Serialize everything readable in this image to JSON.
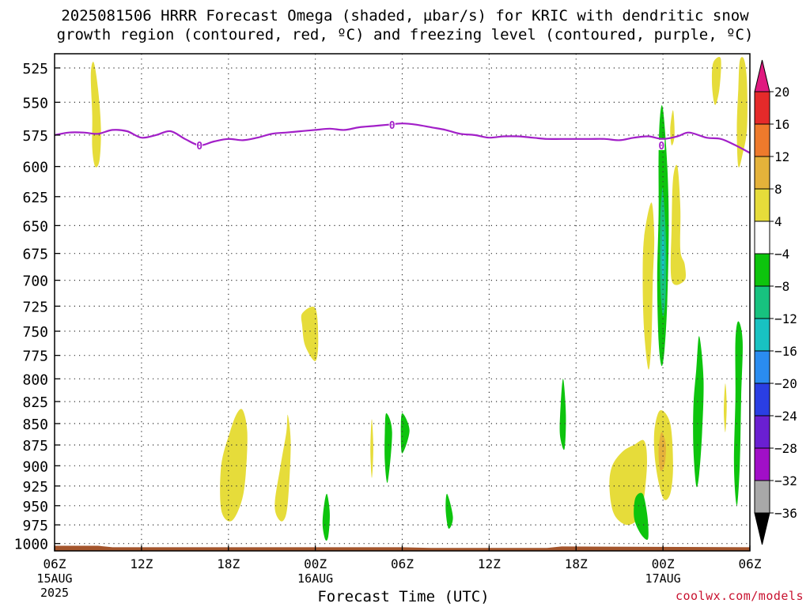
{
  "title": {
    "line1": "2025081506 HRRR Forecast Omega (shaded, µbar/s) for KRIC with dendritic snow",
    "line2": "growth region (contoured, red, ºC) and freezing level (contoured, purple, ºC)"
  },
  "footer": {
    "credit": "coolwx.com/models"
  },
  "chart_data": {
    "type": "heatmap",
    "title": "2025081506 HRRR Forecast Omega (shaded, µbar/s) for KRIC with dendritic snow growth region (contoured, red, ºC) and freezing level (contoured, purple, ºC)",
    "xlabel": "Forecast Time (UTC)",
    "ylabel": "",
    "x_unit": "hours since 2025-08-15 06Z",
    "xlim": [
      0,
      48
    ],
    "ylim_pressure_hPa": [
      1010,
      515
    ],
    "y_ticks": [
      525,
      550,
      575,
      600,
      625,
      650,
      675,
      700,
      725,
      750,
      775,
      800,
      825,
      850,
      875,
      900,
      925,
      950,
      975,
      1000
    ],
    "x_ticks": [
      {
        "h": 0,
        "label": "06Z",
        "sub1": "15AUG",
        "sub2": "2025"
      },
      {
        "h": 6,
        "label": "12Z",
        "sub1": "",
        "sub2": ""
      },
      {
        "h": 12,
        "label": "18Z",
        "sub1": "",
        "sub2": ""
      },
      {
        "h": 18,
        "label": "00Z",
        "sub1": "16AUG",
        "sub2": ""
      },
      {
        "h": 24,
        "label": "06Z",
        "sub1": "",
        "sub2": ""
      },
      {
        "h": 30,
        "label": "12Z",
        "sub1": "",
        "sub2": ""
      },
      {
        "h": 36,
        "label": "18Z",
        "sub1": "",
        "sub2": ""
      },
      {
        "h": 42,
        "label": "00Z",
        "sub1": "17AUG",
        "sub2": ""
      },
      {
        "h": 48,
        "label": "06Z",
        "sub1": "",
        "sub2": ""
      }
    ],
    "grid": true,
    "legend": {
      "position": "right",
      "labels": [
        "20",
        "16",
        "12",
        "8",
        "4",
        "−4",
        "−8",
        "−12",
        "−16",
        "−20",
        "−24",
        "−28",
        "−32",
        "−36"
      ],
      "bins": [
        {
          "color": "#e01a7f"
        },
        {
          "color": "#e52a2a"
        },
        {
          "color": "#ee7a2c"
        },
        {
          "color": "#e5b23a"
        },
        {
          "color": "#e6dc3a"
        },
        {
          "color": "#ffffff"
        },
        {
          "color": "#0dc40d"
        },
        {
          "color": "#17c27f"
        },
        {
          "color": "#18c2c2"
        },
        {
          "color": "#2a8cf0"
        },
        {
          "color": "#2a3ee3"
        },
        {
          "color": "#6a1fd1"
        },
        {
          "color": "#a10fc7"
        },
        {
          "color": "#a8a8a8"
        },
        {
          "color": "#000000"
        }
      ]
    },
    "freezing_level": {
      "color": "#a21fc8",
      "label": "0",
      "points": [
        [
          0,
          575
        ],
        [
          1,
          573
        ],
        [
          2,
          573
        ],
        [
          3,
          574
        ],
        [
          4,
          571
        ],
        [
          5,
          572
        ],
        [
          6,
          577
        ],
        [
          7,
          575
        ],
        [
          8,
          572
        ],
        [
          9,
          578
        ],
        [
          10,
          583
        ],
        [
          11,
          580
        ],
        [
          12,
          578
        ],
        [
          13,
          579
        ],
        [
          14,
          577
        ],
        [
          15,
          574
        ],
        [
          16,
          573
        ],
        [
          17,
          572
        ],
        [
          18,
          571
        ],
        [
          19,
          570
        ],
        [
          20,
          571
        ],
        [
          21,
          569
        ],
        [
          22,
          568
        ],
        [
          23,
          567
        ],
        [
          24,
          566
        ],
        [
          25,
          567
        ],
        [
          26,
          569
        ],
        [
          27,
          571
        ],
        [
          28,
          574
        ],
        [
          29,
          575
        ],
        [
          30,
          577
        ],
        [
          31,
          576
        ],
        [
          32,
          576
        ],
        [
          33,
          577
        ],
        [
          34,
          578
        ],
        [
          35,
          578
        ],
        [
          36,
          578
        ],
        [
          37,
          578
        ],
        [
          38,
          578
        ],
        [
          39,
          579
        ],
        [
          40,
          577
        ],
        [
          41,
          576
        ],
        [
          42,
          578
        ],
        [
          43,
          576
        ],
        [
          43.8,
          573
        ],
        [
          45,
          577
        ],
        [
          46,
          578
        ],
        [
          47,
          583
        ],
        [
          48,
          589
        ]
      ],
      "contour_labels": [
        [
          10.0,
          583
        ],
        [
          23.3,
          567
        ],
        [
          41.9,
          583
        ]
      ]
    },
    "surface": {
      "color": "#a4552c",
      "top_pressure": [
        [
          0,
          1003
        ],
        [
          3,
          1003
        ],
        [
          4,
          1005
        ],
        [
          24,
          1005
        ],
        [
          26,
          1006
        ],
        [
          34,
          1006
        ],
        [
          35,
          1004
        ],
        [
          48,
          1005
        ]
      ]
    },
    "omega_areas": [
      {
        "level": 4,
        "points": [
          [
            2.7,
            521
          ],
          [
            3.0,
            540
          ],
          [
            3.2,
            570
          ],
          [
            3.1,
            595
          ],
          [
            2.8,
            600
          ],
          [
            2.6,
            585
          ],
          [
            2.6,
            560
          ],
          [
            2.5,
            530
          ]
        ]
      },
      {
        "level": 4,
        "points": [
          [
            17.1,
            732
          ],
          [
            18.0,
            727
          ],
          [
            18.2,
            760
          ],
          [
            18.0,
            781
          ],
          [
            17.3,
            765
          ],
          [
            17.1,
            745
          ]
        ]
      },
      {
        "level": 4,
        "points": [
          [
            13.0,
            835
          ],
          [
            13.3,
            860
          ],
          [
            13.2,
            910
          ],
          [
            12.9,
            945
          ],
          [
            12.2,
            970
          ],
          [
            11.5,
            955
          ],
          [
            11.5,
            900
          ],
          [
            12.1,
            860
          ],
          [
            12.6,
            838
          ]
        ]
      },
      {
        "level": 4,
        "points": [
          [
            16.1,
            840
          ],
          [
            16.3,
            870
          ],
          [
            16.2,
            920
          ],
          [
            16.0,
            960
          ],
          [
            15.6,
            970
          ],
          [
            15.2,
            950
          ],
          [
            15.6,
            900
          ],
          [
            16.0,
            860
          ]
        ]
      },
      {
        "level": 4,
        "points": [
          [
            21.9,
            845
          ],
          [
            22.0,
            880
          ],
          [
            21.9,
            915
          ],
          [
            21.8,
            880
          ]
        ]
      },
      {
        "level": 4,
        "points": [
          [
            40.7,
            870
          ],
          [
            40.9,
            895
          ],
          [
            40.7,
            940
          ],
          [
            40.4,
            965
          ],
          [
            39.5,
            975
          ],
          [
            38.6,
            960
          ],
          [
            38.3,
            925
          ],
          [
            38.5,
            900
          ],
          [
            39.2,
            883
          ],
          [
            40.0,
            875
          ]
        ]
      },
      {
        "level": 4,
        "points": [
          [
            41.8,
            835
          ],
          [
            42.5,
            850
          ],
          [
            42.7,
            900
          ],
          [
            42.5,
            935
          ],
          [
            42.0,
            940
          ],
          [
            41.5,
            900
          ],
          [
            41.4,
            860
          ]
        ]
      },
      {
        "level": 8,
        "points": [
          [
            41.9,
            860
          ],
          [
            42.2,
            875
          ],
          [
            42.1,
            900
          ],
          [
            41.8,
            905
          ],
          [
            41.7,
            880
          ]
        ]
      },
      {
        "level": 4,
        "points": [
          [
            41.2,
            630
          ],
          [
            41.4,
            660
          ],
          [
            41.3,
            700
          ],
          [
            41.2,
            760
          ],
          [
            41.0,
            790
          ],
          [
            40.7,
            750
          ],
          [
            40.6,
            700
          ],
          [
            40.7,
            660
          ]
        ]
      },
      {
        "level": 4,
        "points": [
          [
            43.0,
            600
          ],
          [
            43.2,
            635
          ],
          [
            43.2,
            672
          ],
          [
            43.5,
            685
          ],
          [
            43.5,
            700
          ],
          [
            42.6,
            700
          ],
          [
            42.6,
            650
          ],
          [
            42.7,
            610
          ]
        ]
      },
      {
        "level": 4,
        "points": [
          [
            42.7,
            556
          ],
          [
            42.8,
            575
          ],
          [
            42.6,
            583
          ],
          [
            42.5,
            570
          ]
        ]
      },
      {
        "level": 4,
        "points": [
          [
            45.6,
            519
          ],
          [
            46.0,
            519
          ],
          [
            45.9,
            540
          ],
          [
            45.6,
            552
          ],
          [
            45.4,
            540
          ],
          [
            45.4,
            525
          ]
        ]
      },
      {
        "level": 4,
        "points": [
          [
            47.6,
            519
          ],
          [
            47.8,
            535
          ],
          [
            47.8,
            570
          ],
          [
            47.5,
            590
          ],
          [
            47.2,
            600
          ],
          [
            47.1,
            570
          ],
          [
            47.2,
            540
          ],
          [
            47.3,
            520
          ]
        ]
      },
      {
        "level": 4,
        "points": [
          [
            46.3,
            805
          ],
          [
            46.4,
            830
          ],
          [
            46.3,
            860
          ],
          [
            46.2,
            835
          ]
        ]
      },
      {
        "level": -4,
        "points": [
          [
            42.0,
            555
          ],
          [
            42.3,
            600
          ],
          [
            42.4,
            650
          ],
          [
            42.3,
            720
          ],
          [
            42.1,
            770
          ],
          [
            41.9,
            786
          ],
          [
            41.7,
            760
          ],
          [
            41.6,
            700
          ],
          [
            41.7,
            640
          ],
          [
            41.7,
            590
          ],
          [
            41.8,
            560
          ]
        ]
      },
      {
        "level": -8,
        "points": [
          [
            42.0,
            620
          ],
          [
            42.2,
            660
          ],
          [
            42.2,
            710
          ],
          [
            42.0,
            735
          ],
          [
            41.8,
            700
          ],
          [
            41.8,
            650
          ],
          [
            41.9,
            625
          ]
        ]
      },
      {
        "level": -12,
        "points": [
          [
            42.0,
            650
          ],
          [
            42.1,
            680
          ],
          [
            42.0,
            700
          ],
          [
            41.9,
            680
          ]
        ]
      },
      {
        "level": -4,
        "points": [
          [
            18.8,
            935
          ],
          [
            19.0,
            960
          ],
          [
            18.9,
            990
          ],
          [
            18.7,
            995
          ],
          [
            18.5,
            975
          ],
          [
            18.6,
            950
          ]
        ]
      },
      {
        "level": -4,
        "points": [
          [
            24.0,
            838
          ],
          [
            24.5,
            858
          ],
          [
            24.0,
            885
          ],
          [
            23.9,
            860
          ]
        ]
      },
      {
        "level": -4,
        "points": [
          [
            22.9,
            838
          ],
          [
            23.3,
            860
          ],
          [
            23.0,
            920
          ],
          [
            22.8,
            895
          ],
          [
            22.8,
            860
          ]
        ]
      },
      {
        "level": -4,
        "points": [
          [
            27.1,
            935
          ],
          [
            27.5,
            965
          ],
          [
            27.2,
            980
          ],
          [
            27.0,
            955
          ]
        ]
      },
      {
        "level": -4,
        "points": [
          [
            35.1,
            800
          ],
          [
            35.3,
            840
          ],
          [
            35.2,
            880
          ],
          [
            34.9,
            865
          ],
          [
            34.9,
            840
          ]
        ]
      },
      {
        "level": -4,
        "points": [
          [
            40.6,
            935
          ],
          [
            40.9,
            960
          ],
          [
            41.0,
            985
          ],
          [
            40.9,
            995
          ],
          [
            40.4,
            985
          ],
          [
            40.0,
            965
          ],
          [
            40.1,
            940
          ]
        ]
      },
      {
        "level": -4,
        "points": [
          [
            44.5,
            755
          ],
          [
            44.8,
            800
          ],
          [
            44.7,
            860
          ],
          [
            44.5,
            910
          ],
          [
            44.3,
            925
          ],
          [
            44.1,
            880
          ],
          [
            44.1,
            830
          ],
          [
            44.3,
            790
          ]
        ]
      },
      {
        "level": -4,
        "points": [
          [
            47.2,
            740
          ],
          [
            47.5,
            760
          ],
          [
            47.4,
            820
          ],
          [
            47.3,
            900
          ],
          [
            47.1,
            950
          ],
          [
            46.9,
            900
          ],
          [
            47.0,
            820
          ],
          [
            47.0,
            760
          ]
        ]
      }
    ]
  }
}
